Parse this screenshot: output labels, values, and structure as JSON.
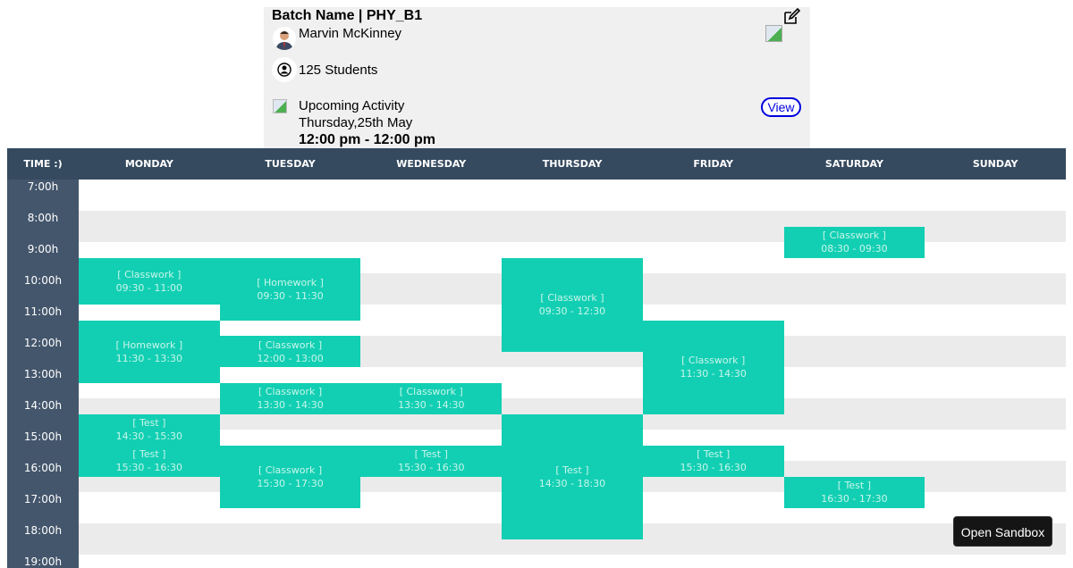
{
  "card": {
    "title": "Batch Name | PHY_B1",
    "teacher": "Marvin McKinney",
    "students": "125 Students",
    "upcoming_label": "Upcoming Activity",
    "upcoming_date": "Thursday,25th May",
    "upcoming_time": "12:00 pm - 12:00 pm",
    "view_label": "View"
  },
  "schedule": {
    "time_header": "TIME :)",
    "days": [
      "MONDAY",
      "TUESDAY",
      "WEDNESDAY",
      "THURSDAY",
      "FRIDAY",
      "SATURDAY",
      "SUNDAY"
    ],
    "hours": [
      "7:00h",
      "8:00h",
      "9:00h",
      "10:00h",
      "11:00h",
      "12:00h",
      "13:00h",
      "14:00h",
      "15:00h",
      "16:00h",
      "17:00h",
      "18:00h",
      "19:00h"
    ],
    "events": [
      {
        "day": 0,
        "type": "[ Classwork ]",
        "time": "09:30 - 11:00"
      },
      {
        "day": 0,
        "type": "[ Homework ]",
        "time": "11:30 - 13:30"
      },
      {
        "day": 0,
        "type": "[ Test ]",
        "time": "14:30 - 15:30"
      },
      {
        "day": 0,
        "type": "[ Test ]",
        "time": "15:30 - 16:30"
      },
      {
        "day": 1,
        "type": "[ Homework ]",
        "time": "09:30 - 11:30"
      },
      {
        "day": 1,
        "type": "[ Classwork ]",
        "time": "12:00 - 13:00"
      },
      {
        "day": 1,
        "type": "[ Classwork ]",
        "time": "13:30 - 14:30"
      },
      {
        "day": 1,
        "type": "[ Classwork ]",
        "time": "15:30 - 17:30"
      },
      {
        "day": 2,
        "type": "[ Classwork ]",
        "time": "13:30 - 14:30"
      },
      {
        "day": 2,
        "type": "[ Test ]",
        "time": "15:30 - 16:30"
      },
      {
        "day": 3,
        "type": "[ Classwork ]",
        "time": "09:30 - 12:30"
      },
      {
        "day": 3,
        "type": "[ Test ]",
        "time": "14:30 - 18:30"
      },
      {
        "day": 4,
        "type": "[ Classwork ]",
        "time": "11:30 - 14:30"
      },
      {
        "day": 4,
        "type": "[ Test ]",
        "time": "15:30 - 16:30"
      },
      {
        "day": 5,
        "type": "[ Classwork ]",
        "time": "08:30 - 09:30"
      },
      {
        "day": 5,
        "type": "[ Test ]",
        "time": "16:30 - 17:30"
      }
    ],
    "colors": {
      "header": "#354a5f",
      "time_column": "#44566c",
      "event": "#12cfb3",
      "row_alt": "#ebebeb"
    }
  },
  "sandbox_label": "Open Sandbox"
}
